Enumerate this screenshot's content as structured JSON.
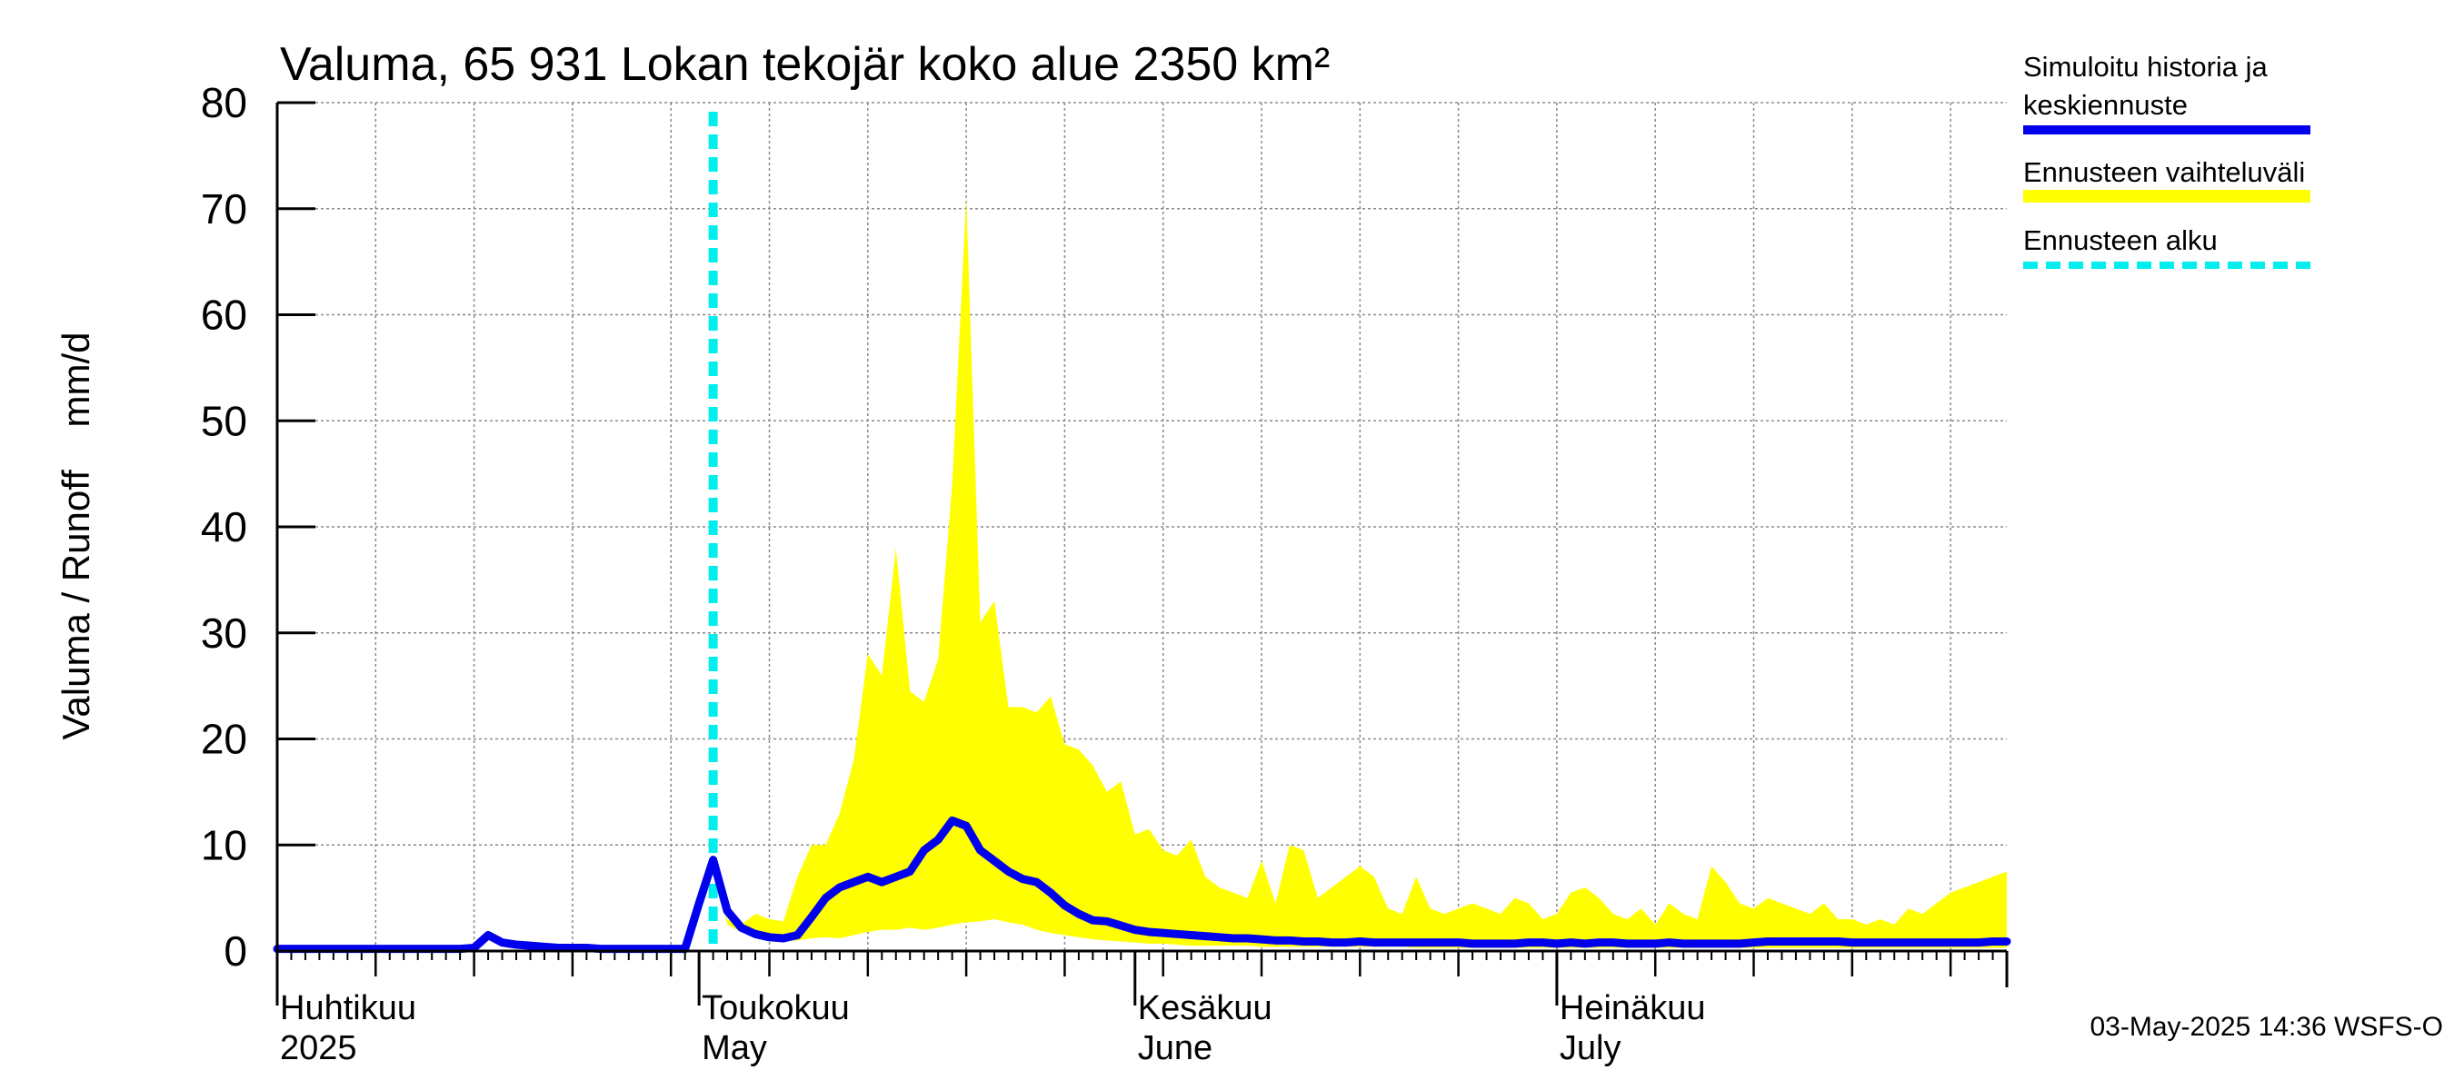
{
  "chart_data": {
    "type": "area",
    "title": "Valuma, 65 931 Lokan tekojär koko alue 2350 km²",
    "ylabel": "Valuma / Runoff    mm/d",
    "ylim": [
      0,
      80
    ],
    "yticks": [
      0,
      10,
      20,
      30,
      40,
      50,
      60,
      70,
      80
    ],
    "xlim_days": [
      0,
      123
    ],
    "month_labels": [
      {
        "line1": "Huhtikuu",
        "line2": "2025",
        "day": 0
      },
      {
        "line1": "Toukokuu",
        "line2": "May",
        "day": 30
      },
      {
        "line1": "Kesäkuu",
        "line2": "June",
        "day": 61
      },
      {
        "line1": "Heinäkuu",
        "line2": "July",
        "day": 91
      }
    ],
    "forecast_start_day": 31,
    "series": [
      {
        "name": "Ennusteen vaihteluväli",
        "color": "#ffff00",
        "x": [
          31,
          32,
          33,
          34,
          35,
          36,
          37,
          38,
          39,
          40,
          41,
          42,
          43,
          44,
          45,
          46,
          47,
          48,
          49,
          50,
          51,
          52,
          53,
          54,
          55,
          56,
          57,
          58,
          59,
          60,
          61,
          62,
          63,
          64,
          65,
          66,
          67,
          68,
          69,
          70,
          71,
          72,
          73,
          74,
          75,
          76,
          77,
          78,
          79,
          80,
          81,
          82,
          83,
          84,
          85,
          86,
          87,
          88,
          89,
          90,
          91,
          92,
          93,
          94,
          95,
          96,
          97,
          98,
          99,
          100,
          101,
          102,
          103,
          104,
          105,
          106,
          107,
          108,
          109,
          110,
          111,
          112,
          113,
          114,
          115,
          116,
          117,
          118,
          119,
          120,
          121,
          122,
          123
        ],
        "upper": [
          8.6,
          3.0,
          2.5,
          3.5,
          3.0,
          2.8,
          7.0,
          10.0,
          10.0,
          13.0,
          18.0,
          28.0,
          26.0,
          38.0,
          24.5,
          23.5,
          27.5,
          44.0,
          71.0,
          31.0,
          33.0,
          23.0,
          23.0,
          22.5,
          24.0,
          19.5,
          19.0,
          17.5,
          15.0,
          16.0,
          11.0,
          11.5,
          9.5,
          9.0,
          10.5,
          7.0,
          6.0,
          5.5,
          5.0,
          8.5,
          4.5,
          10.0,
          9.5,
          5.0,
          6.0,
          7.0,
          8.0,
          7.0,
          4.0,
          3.5,
          7.0,
          4.0,
          3.5,
          4.0,
          4.5,
          4.0,
          3.5,
          5.0,
          4.5,
          3.0,
          3.5,
          5.5,
          6.0,
          5.0,
          3.5,
          3.0,
          4.0,
          2.5,
          4.5,
          3.5,
          3.0,
          8.0,
          6.5,
          4.5,
          4.0,
          5.0,
          4.5,
          4.0,
          3.5,
          4.5,
          3.0,
          3.0,
          2.5,
          3.0,
          2.5,
          4.0,
          3.5,
          4.5,
          5.5,
          6.0,
          6.5,
          7.0,
          7.5
        ],
        "lower": [
          8.6,
          2.5,
          1.8,
          1.3,
          1.1,
          1.0,
          1.0,
          1.2,
          1.3,
          1.2,
          1.5,
          1.8,
          2.0,
          2.0,
          2.2,
          2.0,
          2.2,
          2.5,
          2.7,
          2.8,
          3.0,
          2.7,
          2.5,
          2.0,
          1.7,
          1.5,
          1.3,
          1.1,
          1.0,
          0.9,
          0.8,
          0.7,
          0.7,
          0.6,
          0.5,
          0.5,
          0.5,
          0.5,
          0.5,
          0.4,
          0.4,
          0.4,
          0.4,
          0.4,
          0.4,
          0.4,
          0.4,
          0.4,
          0.4,
          0.4,
          0.3,
          0.3,
          0.3,
          0.3,
          0.3,
          0.3,
          0.3,
          0.3,
          0.3,
          0.3,
          0.3,
          0.3,
          0.3,
          0.3,
          0.3,
          0.3,
          0.3,
          0.3,
          0.3,
          0.3,
          0.3,
          0.3,
          0.3,
          0.3,
          0.3,
          0.3,
          0.3,
          0.3,
          0.3,
          0.3,
          0.3,
          0.3,
          0.3,
          0.3,
          0.3,
          0.3,
          0.3,
          0.3,
          0.3,
          0.3,
          0.3,
          0.3,
          0.3
        ]
      },
      {
        "name": "Simuloitu historia ja keskiennuste",
        "color": "#0000ee",
        "x": [
          0,
          1,
          2,
          3,
          4,
          5,
          6,
          7,
          8,
          9,
          10,
          11,
          12,
          13,
          14,
          15,
          16,
          17,
          18,
          19,
          20,
          21,
          22,
          23,
          24,
          25,
          26,
          27,
          28,
          29,
          30,
          31,
          32,
          33,
          34,
          35,
          36,
          37,
          38,
          39,
          40,
          41,
          42,
          43,
          44,
          45,
          46,
          47,
          48,
          49,
          50,
          51,
          52,
          53,
          54,
          55,
          56,
          57,
          58,
          59,
          60,
          61,
          62,
          63,
          64,
          65,
          66,
          67,
          68,
          69,
          70,
          71,
          72,
          73,
          74,
          75,
          76,
          77,
          78,
          79,
          80,
          81,
          82,
          83,
          84,
          85,
          86,
          87,
          88,
          89,
          90,
          91,
          92,
          93,
          94,
          95,
          96,
          97,
          98,
          99,
          100,
          101,
          102,
          103,
          104,
          105,
          106,
          107,
          108,
          109,
          110,
          111,
          112,
          113,
          114,
          115,
          116,
          117,
          118,
          119,
          120,
          121,
          122,
          123
        ],
        "values": [
          0.2,
          0.2,
          0.2,
          0.2,
          0.2,
          0.2,
          0.2,
          0.2,
          0.2,
          0.2,
          0.2,
          0.2,
          0.2,
          0.2,
          0.3,
          1.5,
          0.8,
          0.6,
          0.5,
          0.4,
          0.3,
          0.3,
          0.3,
          0.2,
          0.2,
          0.2,
          0.2,
          0.2,
          0.2,
          0.2,
          4.5,
          8.6,
          3.8,
          2.2,
          1.6,
          1.3,
          1.2,
          1.5,
          3.2,
          5.0,
          6.0,
          6.5,
          7.0,
          6.5,
          7.0,
          7.5,
          9.5,
          10.5,
          12.3,
          11.8,
          9.5,
          8.5,
          7.5,
          6.8,
          6.5,
          5.5,
          4.3,
          3.5,
          2.9,
          2.8,
          2.4,
          2.0,
          1.8,
          1.7,
          1.6,
          1.5,
          1.4,
          1.3,
          1.2,
          1.2,
          1.1,
          1.0,
          1.0,
          0.9,
          0.9,
          0.8,
          0.8,
          0.9,
          0.8,
          0.8,
          0.8,
          0.8,
          0.8,
          0.8,
          0.8,
          0.7,
          0.7,
          0.7,
          0.7,
          0.8,
          0.8,
          0.7,
          0.8,
          0.7,
          0.8,
          0.8,
          0.7,
          0.7,
          0.7,
          0.8,
          0.7,
          0.7,
          0.7,
          0.7,
          0.7,
          0.8,
          0.9,
          0.9,
          0.9,
          0.9,
          0.9,
          0.9,
          0.8,
          0.8,
          0.8,
          0.8,
          0.8,
          0.8,
          0.8,
          0.8,
          0.8,
          0.8,
          0.9,
          0.9
        ]
      }
    ]
  },
  "legend": {
    "items": [
      {
        "line1": "Simuloitu historia ja",
        "line2": "keskiennuste",
        "color": "#0000ee",
        "style": "solid"
      },
      {
        "line1": "Ennusteen vaihteluväli",
        "line2": "",
        "color": "#ffff00",
        "style": "band"
      },
      {
        "line1": "Ennusteen alku",
        "line2": "",
        "color": "#00eeee",
        "style": "dashed"
      }
    ]
  },
  "footer": "03-May-2025 14:36 WSFS-O"
}
